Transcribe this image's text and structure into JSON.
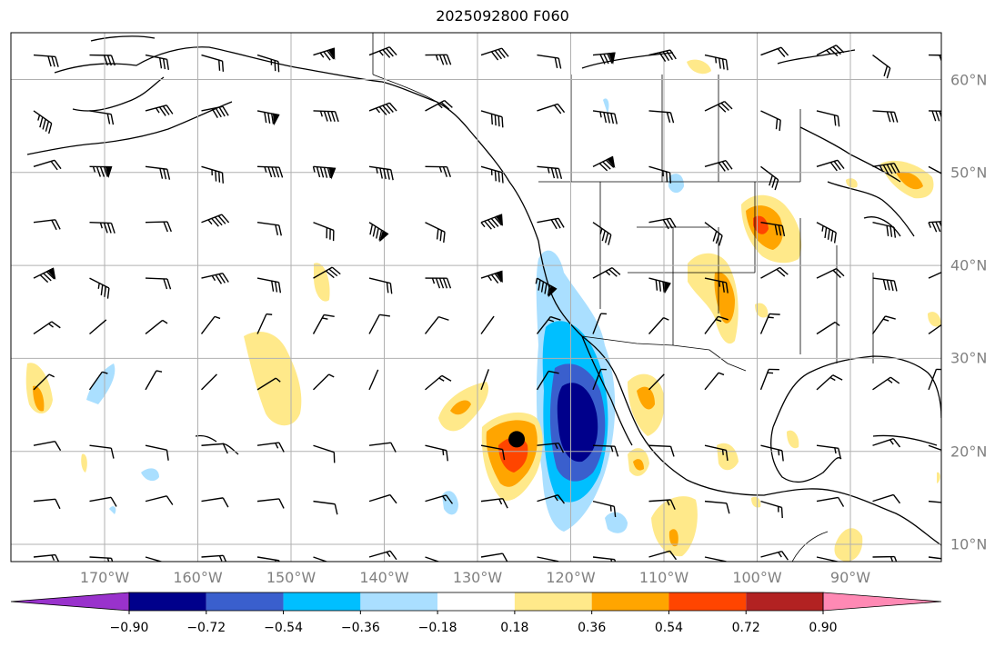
{
  "title": "2025092800 F060",
  "lon_ticks": [
    {
      "value": -170,
      "label": "170°W"
    },
    {
      "value": -160,
      "label": "160°W"
    },
    {
      "value": -150,
      "label": "150°W"
    },
    {
      "value": -140,
      "label": "140°W"
    },
    {
      "value": -130,
      "label": "130°W"
    },
    {
      "value": -120,
      "label": "120°W"
    },
    {
      "value": -110,
      "label": "110°W"
    },
    {
      "value": -100,
      "label": "100°W"
    },
    {
      "value": -90,
      "label": "90°W"
    }
  ],
  "lat_ticks": [
    {
      "value": 60,
      "label": "60°N"
    },
    {
      "value": 50,
      "label": "50°N"
    },
    {
      "value": 40,
      "label": "40°N"
    },
    {
      "value": 30,
      "label": "30°N"
    },
    {
      "value": 20,
      "label": "20°N"
    },
    {
      "value": 10,
      "label": "10°N"
    }
  ],
  "colorbar": {
    "levels": [
      -0.9,
      -0.72,
      -0.54,
      -0.36,
      -0.18,
      0.18,
      0.36,
      0.54,
      0.72,
      0.9
    ],
    "labels": [
      "−0.90",
      "−0.72",
      "−0.54",
      "−0.36",
      "−0.18",
      "0.18",
      "0.36",
      "0.54",
      "0.72",
      "0.90"
    ],
    "colors": {
      "under": "#9932cc",
      "bins": [
        "#00008b",
        "#3a5fcd",
        "#00bfff",
        "#aadfff",
        "#ffffff",
        "#ffe98a",
        "#ffa500",
        "#ff4500",
        "#b22222"
      ],
      "over": "#ff89b4"
    }
  },
  "storm_center": {
    "lon": -125.8,
    "lat": 21.3
  }
}
